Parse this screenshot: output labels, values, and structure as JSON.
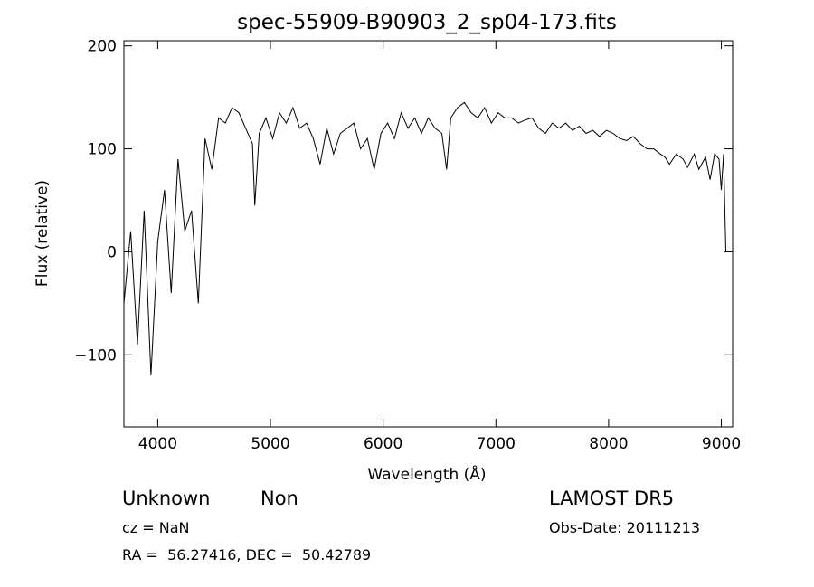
{
  "chart_data": {
    "type": "line",
    "title": "spec-55909-B90903_2_sp04-173.fits",
    "xlabel": "Wavelength (Å)",
    "ylabel": "Flux (relative)",
    "xlim": [
      3700,
      9100
    ],
    "ylim": [
      -170,
      205
    ],
    "xticks": [
      "4000",
      "5000",
      "6000",
      "7000",
      "8000",
      "9000"
    ],
    "yticks": [
      "-100",
      "0",
      "100",
      "200"
    ],
    "grid": false,
    "legend": "none",
    "series": [
      {
        "x": [
          3700,
          3760,
          3820,
          3880,
          3940,
          4000,
          4060,
          4120,
          4180,
          4240,
          4300,
          4360,
          4420,
          4480,
          4540,
          4600,
          4660,
          4720,
          4780,
          4840,
          4861,
          4900,
          4960,
          5020,
          5080,
          5140,
          5200,
          5260,
          5320,
          5380,
          5440,
          5500,
          5560,
          5620,
          5680,
          5740,
          5800,
          5860,
          5920,
          5980,
          6040,
          6100,
          6160,
          6220,
          6280,
          6340,
          6400,
          6460,
          6520,
          6563,
          6600,
          6660,
          6720,
          6780,
          6840,
          6900,
          6960,
          7020,
          7080,
          7140,
          7200,
          7260,
          7320,
          7380,
          7440,
          7500,
          7560,
          7620,
          7680,
          7740,
          7800,
          7860,
          7920,
          7980,
          8040,
          8100,
          8160,
          8220,
          8280,
          8340,
          8400,
          8460,
          8500,
          8540,
          8600,
          8660,
          8700,
          8760,
          8800,
          8860,
          8900,
          8940,
          8980,
          9000,
          9020,
          9040
        ],
        "y": [
          -50,
          20,
          -90,
          40,
          -120,
          10,
          60,
          -40,
          90,
          20,
          40,
          -50,
          110,
          80,
          130,
          125,
          140,
          135,
          120,
          105,
          45,
          115,
          130,
          110,
          135,
          125,
          140,
          120,
          125,
          110,
          85,
          120,
          95,
          115,
          120,
          125,
          100,
          110,
          80,
          115,
          125,
          110,
          135,
          120,
          130,
          115,
          130,
          120,
          115,
          80,
          130,
          140,
          145,
          135,
          130,
          140,
          125,
          135,
          130,
          130,
          125,
          128,
          130,
          120,
          115,
          125,
          120,
          125,
          118,
          122,
          115,
          118,
          112,
          118,
          115,
          110,
          108,
          112,
          105,
          100,
          100,
          95,
          92,
          85,
          95,
          90,
          82,
          95,
          80,
          92,
          70,
          95,
          90,
          60,
          95,
          0
        ]
      }
    ]
  },
  "footer": {
    "object_class": "Unknown",
    "subclass": "Non",
    "survey": "LAMOST DR5",
    "cz": "cz = NaN",
    "obs_date": "Obs-Date: 20111213",
    "coords": "RA =  56.27416, DEC =  50.42789"
  }
}
